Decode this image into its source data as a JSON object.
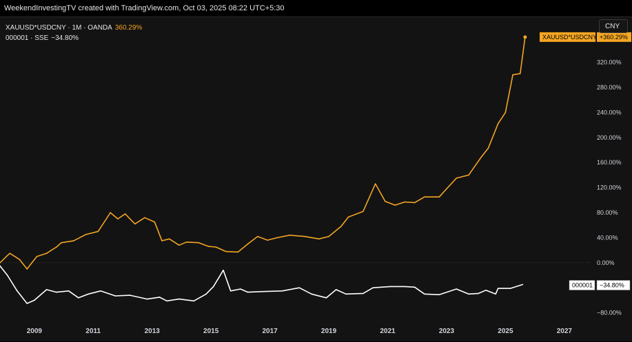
{
  "header": {
    "credit": "WeekendInvestingTV created with TradingView.com, Oct 03, 2025 08:22 UTC+5:30"
  },
  "legend": {
    "series1_label": "XAUUSD*USDCNY · 1M · OANDA",
    "series1_value": "360.29%",
    "series2_label": "000001 · SSE",
    "series2_value": "−34.80%"
  },
  "currency_button": "CNY",
  "colors": {
    "gold": "#f5a623",
    "white": "#ffffff",
    "background": "#131313"
  },
  "chart_data": {
    "type": "line",
    "title": "",
    "xlabel": "",
    "ylabel": "",
    "x_ticks": [
      "2009",
      "2011",
      "2013",
      "2015",
      "2017",
      "2019",
      "2021",
      "2023",
      "2025",
      "2027"
    ],
    "y_ticks": [
      "320.00%",
      "280.00%",
      "240.00%",
      "200.00%",
      "160.00%",
      "120.00%",
      "80.00%",
      "40.00%",
      "0.00%",
      "−40.00%",
      "−80.00%"
    ],
    "y_tick_values": [
      320,
      280,
      240,
      200,
      160,
      120,
      80,
      40,
      0,
      -40,
      -80
    ],
    "xlim": [
      "2007-11",
      "2027-12"
    ],
    "ylim": [
      -98,
      392
    ],
    "grid": false,
    "series": [
      {
        "name": "XAUUSD*USDCNY",
        "color": "#f5a623",
        "last_label": "XAUUSD*USDCNY",
        "last_value_label": "+360.29%",
        "points": [
          [
            "2007-11",
            0
          ],
          [
            "2008-03",
            15
          ],
          [
            "2008-07",
            5
          ],
          [
            "2008-10",
            -10
          ],
          [
            "2009-02",
            10
          ],
          [
            "2009-06",
            15
          ],
          [
            "2009-10",
            25
          ],
          [
            "2009-12",
            32
          ],
          [
            "2010-05",
            35
          ],
          [
            "2010-10",
            45
          ],
          [
            "2011-03",
            50
          ],
          [
            "2011-08",
            80
          ],
          [
            "2011-11",
            70
          ],
          [
            "2012-02",
            78
          ],
          [
            "2012-06",
            62
          ],
          [
            "2012-10",
            72
          ],
          [
            "2013-02",
            65
          ],
          [
            "2013-05",
            35
          ],
          [
            "2013-08",
            38
          ],
          [
            "2013-12",
            28
          ],
          [
            "2014-03",
            33
          ],
          [
            "2014-08",
            32
          ],
          [
            "2014-12",
            26
          ],
          [
            "2015-03",
            25
          ],
          [
            "2015-07",
            18
          ],
          [
            "2015-12",
            17
          ],
          [
            "2016-04",
            30
          ],
          [
            "2016-08",
            42
          ],
          [
            "2016-12",
            36
          ],
          [
            "2017-04",
            40
          ],
          [
            "2017-09",
            44
          ],
          [
            "2018-03",
            42
          ],
          [
            "2018-09",
            38
          ],
          [
            "2019-01",
            42
          ],
          [
            "2019-06",
            58
          ],
          [
            "2019-09",
            73
          ],
          [
            "2020-03",
            82
          ],
          [
            "2020-08",
            126
          ],
          [
            "2020-12",
            98
          ],
          [
            "2021-04",
            92
          ],
          [
            "2021-08",
            97
          ],
          [
            "2021-12",
            96
          ],
          [
            "2022-04",
            105
          ],
          [
            "2022-10",
            105
          ],
          [
            "2023-01",
            118
          ],
          [
            "2023-05",
            135
          ],
          [
            "2023-10",
            140
          ],
          [
            "2024-03",
            168
          ],
          [
            "2024-06",
            183
          ],
          [
            "2024-10",
            222
          ],
          [
            "2025-01",
            240
          ],
          [
            "2025-04",
            300
          ],
          [
            "2025-07",
            302
          ],
          [
            "2025-09",
            360.29
          ]
        ]
      },
      {
        "name": "000001",
        "color": "#ffffff",
        "last_label": "000001",
        "last_value_label": "−34.80%",
        "points": [
          [
            "2007-11",
            -5
          ],
          [
            "2008-02",
            -20
          ],
          [
            "2008-06",
            -45
          ],
          [
            "2008-10",
            -65
          ],
          [
            "2009-01",
            -60
          ],
          [
            "2009-06",
            -43
          ],
          [
            "2009-10",
            -47
          ],
          [
            "2010-03",
            -45
          ],
          [
            "2010-07",
            -56
          ],
          [
            "2010-11",
            -50
          ],
          [
            "2011-04",
            -45
          ],
          [
            "2011-10",
            -53
          ],
          [
            "2012-04",
            -52
          ],
          [
            "2012-11",
            -58
          ],
          [
            "2013-04",
            -55
          ],
          [
            "2013-07",
            -61
          ],
          [
            "2013-12",
            -58
          ],
          [
            "2014-06",
            -61
          ],
          [
            "2014-11",
            -50
          ],
          [
            "2015-02",
            -38
          ],
          [
            "2015-06",
            -12
          ],
          [
            "2015-09",
            -45
          ],
          [
            "2016-01",
            -42
          ],
          [
            "2016-04",
            -47
          ],
          [
            "2016-10",
            -46
          ],
          [
            "2017-06",
            -45
          ],
          [
            "2018-01",
            -40
          ],
          [
            "2018-06",
            -50
          ],
          [
            "2018-12",
            -56
          ],
          [
            "2019-04",
            -43
          ],
          [
            "2019-08",
            -50
          ],
          [
            "2020-03",
            -49
          ],
          [
            "2020-07",
            -40
          ],
          [
            "2021-02",
            -38
          ],
          [
            "2021-08",
            -38
          ],
          [
            "2021-12",
            -39
          ],
          [
            "2022-04",
            -50
          ],
          [
            "2022-10",
            -51
          ],
          [
            "2023-05",
            -42
          ],
          [
            "2023-10",
            -50
          ],
          [
            "2024-02",
            -49
          ],
          [
            "2024-05",
            -44
          ],
          [
            "2024-09",
            -50
          ],
          [
            "2024-10",
            -41
          ],
          [
            "2025-03",
            -41
          ],
          [
            "2025-08",
            -34.8
          ]
        ]
      }
    ]
  }
}
